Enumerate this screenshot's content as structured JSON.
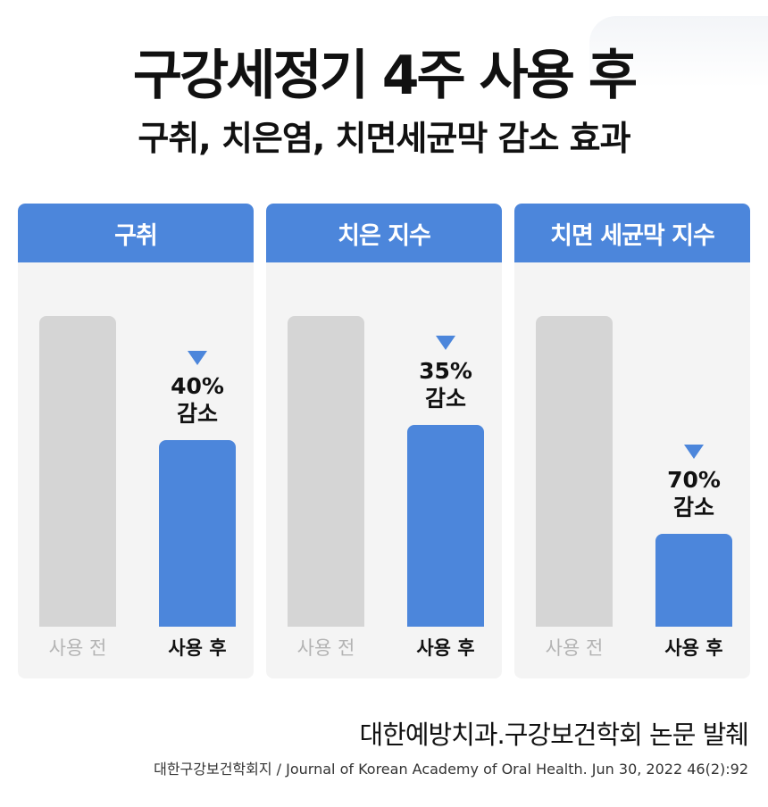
{
  "title": "구강세정기 4주 사용 후",
  "subtitle": "구취, 치은염, 치면세균막 감소 효과",
  "colors": {
    "accent": "#4c86db",
    "before_bar": "#d5d5d5",
    "panel_bg": "#f4f4f4"
  },
  "panels": [
    {
      "header": "구취",
      "before_label": "사용 전",
      "after_label": "사용 후",
      "before_value": 100,
      "after_value": 60,
      "percent": "40%",
      "decrease": "감소"
    },
    {
      "header": "치은 지수",
      "before_label": "사용 전",
      "after_label": "사용 후",
      "before_value": 100,
      "after_value": 65,
      "percent": "35%",
      "decrease": "감소"
    },
    {
      "header": "치면 세균막 지수",
      "before_label": "사용 전",
      "after_label": "사용 후",
      "before_value": 100,
      "after_value": 30,
      "percent": "70%",
      "decrease": "감소"
    }
  ],
  "chart_data": {
    "type": "bar",
    "title": "구강세정기 4주 사용 후",
    "subtitle": "구취, 치은염, 치면세균막 감소 효과",
    "categories": [
      "사용 전",
      "사용 후"
    ],
    "charts": [
      {
        "name": "구취",
        "values": [
          100,
          60
        ],
        "annotation": "40% 감소"
      },
      {
        "name": "치은 지수",
        "values": [
          100,
          65
        ],
        "annotation": "35% 감소"
      },
      {
        "name": "치면 세균막 지수",
        "values": [
          100,
          30
        ],
        "annotation": "70% 감소"
      }
    ],
    "ylim": [
      0,
      100
    ],
    "grid": false
  },
  "source": {
    "main": "대한예방치과.구강보건학회 논문 발췌",
    "citation": "대한구강보건학회지 / Journal of Korean Academy of Oral Health. Jun 30, 2022 46(2):92"
  }
}
